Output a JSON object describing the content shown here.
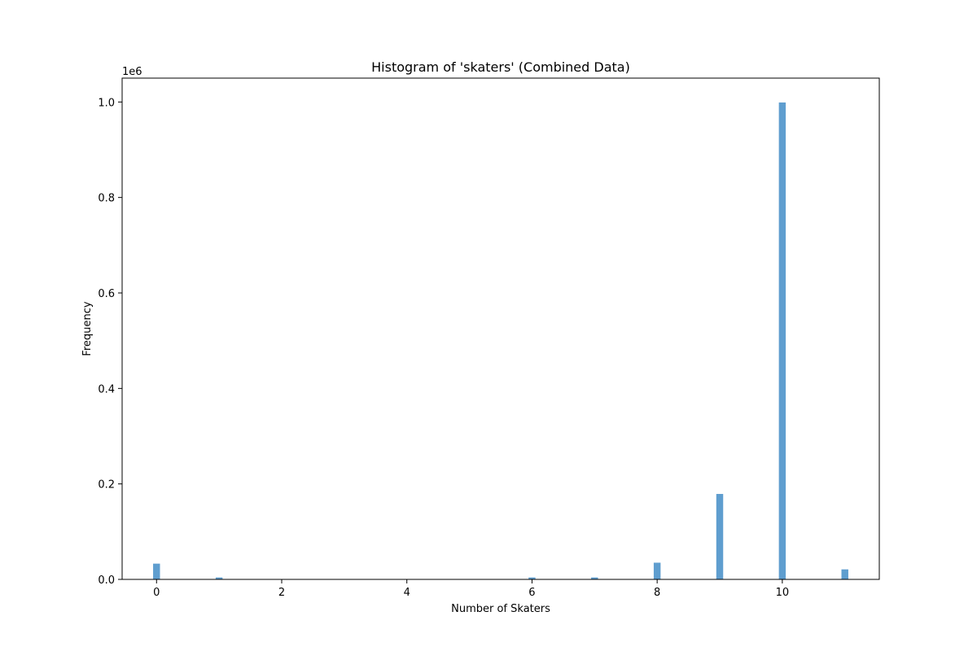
{
  "chart_data": {
    "type": "bar",
    "title": "Histogram of 'skaters' (Combined Data)",
    "xlabel": "Number of Skaters",
    "ylabel": "Frequency",
    "y_offset_text": "1e6",
    "xlim": [
      -0.55,
      11.55
    ],
    "ylim": [
      0,
      1.05
    ],
    "x_ticks": [
      0,
      2,
      4,
      6,
      8,
      10
    ],
    "x_tick_labels": [
      "0",
      "2",
      "4",
      "6",
      "8",
      "10"
    ],
    "y_ticks": [
      0,
      0.2,
      0.4,
      0.6,
      0.8,
      1.0
    ],
    "y_tick_labels": [
      "0.0",
      "0.2",
      "0.4",
      "0.6",
      "0.8",
      "1.0"
    ],
    "bin_width": 0.11,
    "bar_color": "#5f9ecf",
    "series": [
      {
        "x": [
          0,
          1,
          6,
          7,
          8,
          9,
          10,
          11
        ],
        "values": [
          0.033,
          0.004,
          0.004,
          0.004,
          0.035,
          0.179,
          0.999,
          0.021
        ]
      }
    ],
    "grid": false
  }
}
